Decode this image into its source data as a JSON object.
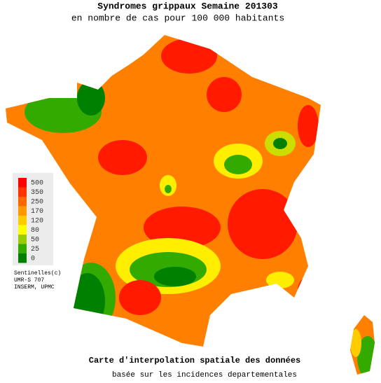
{
  "header": {
    "title": "Syndromes grippaux Semaine 201303",
    "subtitle": "en nombre de cas pour 100 000 habitants"
  },
  "legend": {
    "items": [
      {
        "value": 500,
        "color": "#ff0000"
      },
      {
        "value": 350,
        "color": "#ff3300"
      },
      {
        "value": 250,
        "color": "#ff6600"
      },
      {
        "value": 170,
        "color": "#ff9900"
      },
      {
        "value": 120,
        "color": "#ffcc00"
      },
      {
        "value": 80,
        "color": "#ffff00"
      },
      {
        "value": 50,
        "color": "#99cc00"
      },
      {
        "value": 25,
        "color": "#33aa00"
      },
      {
        "value": 0,
        "color": "#008000"
      }
    ]
  },
  "credits": [
    "Sentinelles(c)",
    "UMR-S 707",
    "INSERM, UPMC"
  ],
  "footer": {
    "title": "Carte d'interpolation spatiale des données",
    "subtitle": "basée sur les incidences departementales"
  }
}
